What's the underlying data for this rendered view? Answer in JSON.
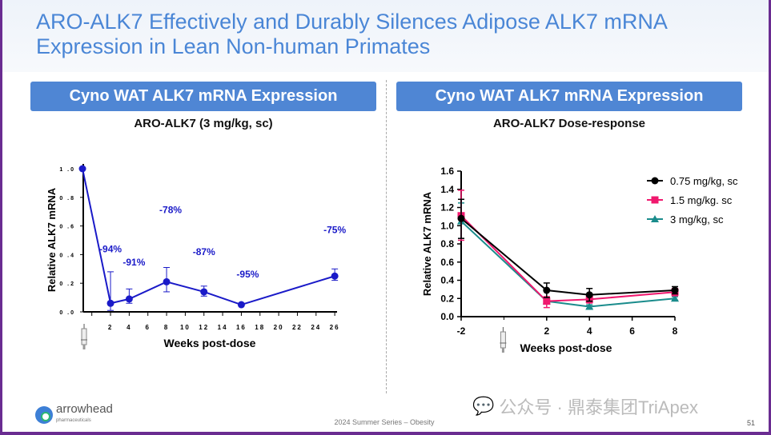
{
  "title": "ARO-ALK7 Effectively and Durably Silences Adipose ALK7 mRNA Expression in Lean Non-human Primates",
  "left_panel": {
    "banner": "Cyno WAT ALK7 mRNA Expression",
    "subtitle": "ARO-ALK7 (3 mg/kg, sc)"
  },
  "right_panel": {
    "banner": "Cyno WAT ALK7 mRNA Expression",
    "subtitle": "ARO-ALK7 Dose-response"
  },
  "chart_data": [
    {
      "type": "line",
      "title": "ARO-ALK7 (3 mg/kg, sc)",
      "xlabel": "Weeks post-dose",
      "ylabel": "Relative ALK7 mRNA",
      "xlim": [
        -1,
        26
      ],
      "ylim": [
        0,
        1.0
      ],
      "xticks": [
        2,
        4,
        6,
        8,
        10,
        12,
        14,
        16,
        18,
        20,
        22,
        24,
        26
      ],
      "yticks": [
        "0.0",
        "0.2",
        "0.4",
        "0.6",
        "0.8",
        "1.0"
      ],
      "dose_marker": "syringe-icon",
      "series": [
        {
          "color": "#1a1ac8",
          "x": [
            -1,
            2,
            4,
            8,
            12,
            16,
            26
          ],
          "y": [
            1.0,
            0.06,
            0.09,
            0.21,
            0.14,
            0.05,
            0.25
          ],
          "err_low": [
            1.0,
            0.01,
            0.06,
            0.14,
            0.11,
            0.04,
            0.22
          ],
          "err_high": [
            1.0,
            0.28,
            0.16,
            0.31,
            0.18,
            0.06,
            0.3
          ]
        }
      ],
      "annotations": [
        {
          "x": 2,
          "text": "-94%"
        },
        {
          "x": 4,
          "text": "-91%"
        },
        {
          "x": 8,
          "text": "-78%"
        },
        {
          "x": 12,
          "text": "-87%"
        },
        {
          "x": 16,
          "text": "-95%"
        },
        {
          "x": 26,
          "text": "-75%"
        }
      ]
    },
    {
      "type": "line",
      "title": "ARO-ALK7 Dose-response",
      "xlabel": "Weeks post-dose",
      "ylabel": "Relative ALK7 mRNA",
      "xlim": [
        -2,
        8
      ],
      "ylim": [
        0,
        1.6
      ],
      "xticks": [
        "-2",
        "2",
        "4",
        "6",
        "8"
      ],
      "yticks": [
        "0.0",
        "0.2",
        "0.4",
        "0.6",
        "0.8",
        "1.0",
        "1.2",
        "1.4",
        "1.6"
      ],
      "legend": "top-right",
      "dose_marker": "syringe-icon",
      "series": [
        {
          "name": "0.75 mg/kg, sc",
          "color": "#000000",
          "marker": "circle",
          "x": [
            -2,
            2,
            4,
            8
          ],
          "y": [
            1.08,
            0.29,
            0.24,
            0.29
          ],
          "err_low": [
            0.86,
            0.21,
            0.17,
            0.25
          ],
          "err_high": [
            1.29,
            0.37,
            0.31,
            0.33
          ]
        },
        {
          "name": "1.5 mg/kg. sc",
          "color": "#f0186e",
          "marker": "square",
          "x": [
            -2,
            2,
            4,
            8
          ],
          "y": [
            1.11,
            0.17,
            0.19,
            0.27
          ],
          "err_low": [
            0.84,
            0.1,
            0.15,
            0.23
          ],
          "err_high": [
            1.39,
            0.22,
            0.23,
            0.31
          ]
        },
        {
          "name": "3 mg/kg, sc",
          "color": "#1a8c8c",
          "marker": "triangle",
          "x": [
            -2,
            2,
            4,
            8
          ],
          "y": [
            1.05,
            0.17,
            0.11,
            0.2
          ],
          "err_low": [
            0.86,
            0.14,
            0.09,
            0.18
          ],
          "err_high": [
            1.25,
            0.21,
            0.13,
            0.22
          ]
        }
      ]
    }
  ],
  "footer": {
    "logo": "arrowhead pharmaceuticals",
    "center": "2024 Summer Series – Obesity",
    "page": "51",
    "watermark": "公众号 · 鼎泰集团TriApex"
  }
}
